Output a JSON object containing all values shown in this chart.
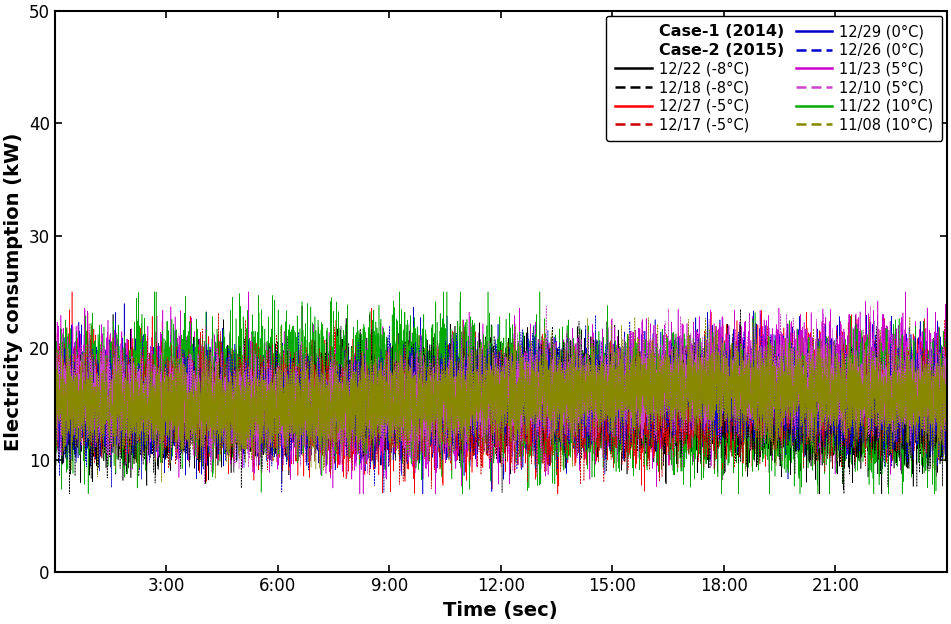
{
  "title": "",
  "xlabel": "Time (sec)",
  "ylabel": "Electricity consumption (kW)",
  "ylim": [
    0,
    50
  ],
  "yticks": [
    0,
    10,
    20,
    30,
    40,
    50
  ],
  "xlim_minutes": [
    0,
    1440
  ],
  "xtick_positions_minutes": [
    180,
    360,
    540,
    720,
    900,
    1080,
    1260
  ],
  "xtick_labels": [
    "3:00",
    "6:00",
    "9:00",
    "12:00",
    "15:00",
    "18:00",
    "21:00"
  ],
  "case1_label": "Case-1 (2014)",
  "case2_label": "Case-2 (2015)",
  "series": [
    {
      "label": "12/22 (-8°C)",
      "color": "#000000",
      "linestyle": "solid",
      "base": 15.0,
      "amp": 1.0,
      "noise": 2.2,
      "seed": 1
    },
    {
      "label": "12/27 (-5°C)",
      "color": "#ff0000",
      "linestyle": "solid",
      "base": 15.3,
      "amp": 1.0,
      "noise": 2.2,
      "seed": 2
    },
    {
      "label": "12/29 (0°C)",
      "color": "#0000cc",
      "linestyle": "solid",
      "base": 15.6,
      "amp": 1.0,
      "noise": 2.2,
      "seed": 3
    },
    {
      "label": "11/23 (5°C)",
      "color": "#cc00cc",
      "linestyle": "solid",
      "base": 16.0,
      "amp": 1.2,
      "noise": 2.5,
      "seed": 4
    },
    {
      "label": "11/22 (10°C)",
      "color": "#00aa00",
      "linestyle": "solid",
      "base": 15.8,
      "amp": 1.3,
      "noise": 2.8,
      "seed": 5
    },
    {
      "label": "12/18 (-8°C)",
      "color": "#000000",
      "linestyle": "dashed",
      "base": 14.8,
      "amp": 0.8,
      "noise": 2.0,
      "seed": 6
    },
    {
      "label": "12/17 (-5°C)",
      "color": "#cc0000",
      "linestyle": "dashed",
      "base": 15.1,
      "amp": 0.8,
      "noise": 2.0,
      "seed": 7
    },
    {
      "label": "12/26 (0°C)",
      "color": "#0000cc",
      "linestyle": "dashed",
      "base": 15.4,
      "amp": 0.8,
      "noise": 2.0,
      "seed": 8
    },
    {
      "label": "12/10 (5°C)",
      "color": "#cc44cc",
      "linestyle": "dashed",
      "base": 15.8,
      "amp": 1.0,
      "noise": 2.0,
      "seed": 9
    },
    {
      "label": "11/08 (10°C)",
      "color": "#888800",
      "linestyle": "dashed",
      "base": 15.5,
      "amp": 0.9,
      "noise": 2.0,
      "seed": 10
    }
  ],
  "n_points": 8640,
  "figsize": [
    9.51,
    6.24
  ],
  "dpi": 100,
  "background_color": "#ffffff",
  "tick_fontsize": 12,
  "label_fontsize": 14,
  "legend_fontsize": 10.5
}
